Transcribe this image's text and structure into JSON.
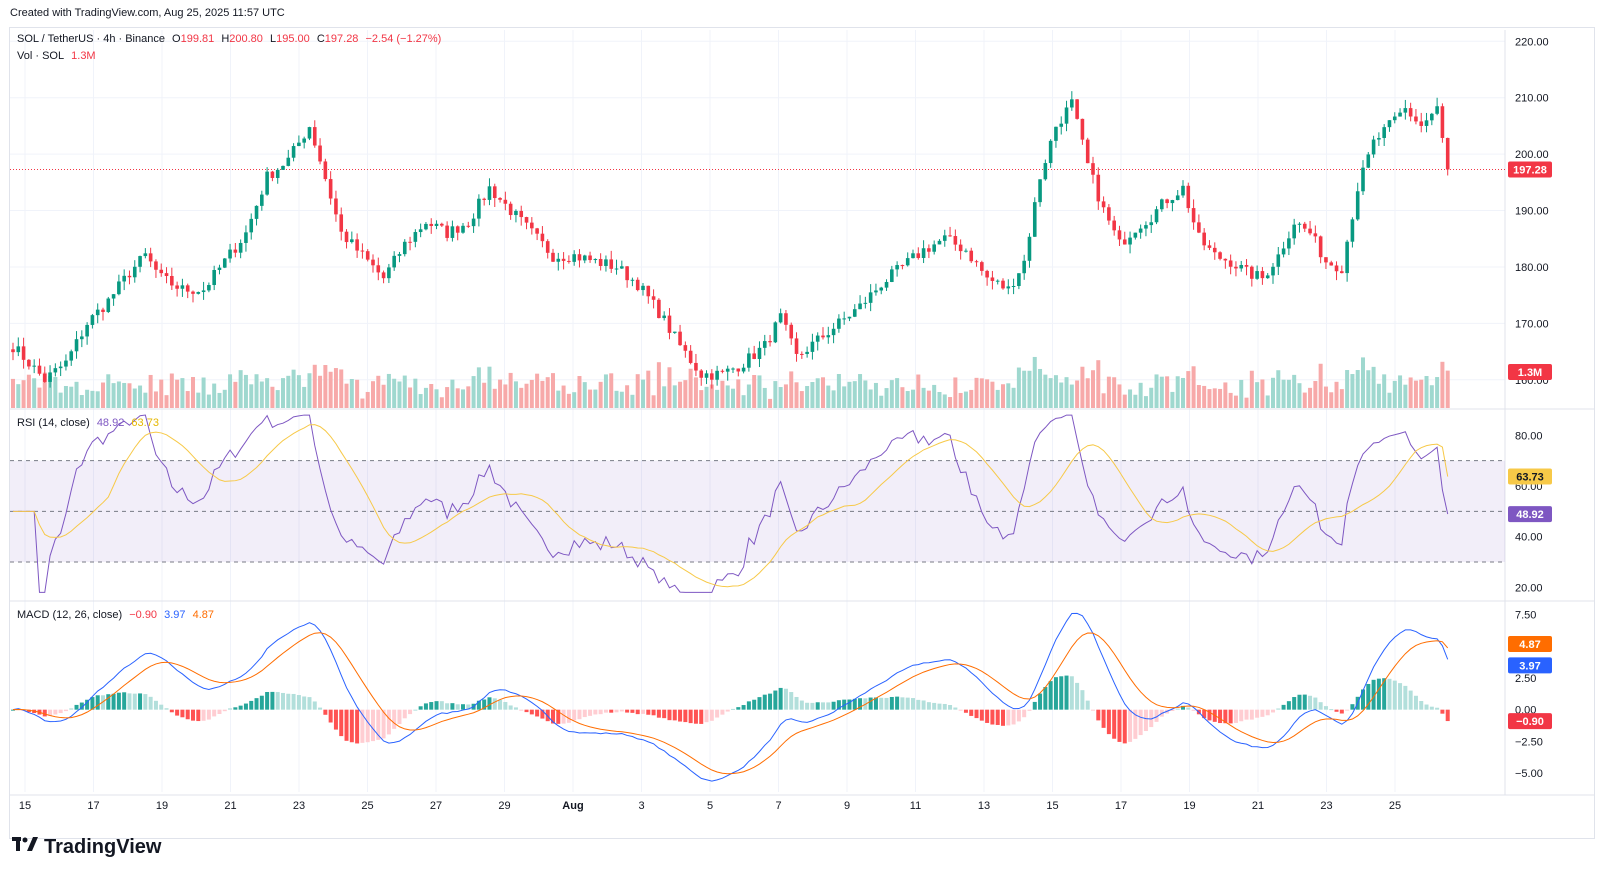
{
  "header": {
    "created_text": "Created with TradingView.com, Aug 25, 2025 11:57 UTC"
  },
  "symbol": {
    "name": "SOL / TetherUS · 4h · Binance",
    "open_label": "O",
    "open": "199.81",
    "high_label": "H",
    "high": "200.80",
    "low_label": "L",
    "low": "195.00",
    "close_label": "C",
    "close": "197.28",
    "change": "−2.54 (−1.27%)"
  },
  "volume_legend": {
    "label": "Vol · SOL",
    "value": "1.3M"
  },
  "price_axis": {
    "ticks": [
      "220.00",
      "210.00",
      "200.00",
      "190.00",
      "180.00",
      "170.00",
      "160.00"
    ],
    "last_price": "197.28",
    "volume_badge": "1.3M"
  },
  "rsi": {
    "label": "RSI (14, close)",
    "rsi_value": "48.92",
    "ma_value": "63.73",
    "ticks": [
      "80.00",
      "60.00",
      "40.00",
      "20.00"
    ],
    "badge_ma": "63.73",
    "badge_rsi": "48.92",
    "upper_band": 70,
    "lower_band": 30,
    "middle": 50
  },
  "macd": {
    "label": "MACD (12, 26, close)",
    "hist_value": "−0.90",
    "macd_value": "3.97",
    "signal_value": "4.87",
    "ticks": [
      "7.50",
      "5.00",
      "2.50",
      "0.00",
      "−2.50",
      "−5.00"
    ],
    "badge_signal": "4.87",
    "badge_macd": "3.97",
    "badge_hist": "−0.90"
  },
  "time_axis": {
    "labels": [
      "15",
      "17",
      "19",
      "21",
      "23",
      "25",
      "27",
      "29",
      "Aug",
      "3",
      "5",
      "7",
      "9",
      "11",
      "13",
      "15",
      "17",
      "19",
      "21",
      "23",
      "25"
    ]
  },
  "colors": {
    "up": "#089981",
    "down": "#f23645",
    "rsi": "#7e57c2",
    "rsi_ma": "#f7c948",
    "macd": "#2962ff",
    "signal": "#ff6d00"
  },
  "brand": {
    "name": "TradingView",
    "logo_icon": "tradingview-logo-icon"
  },
  "chart_data": {
    "type": "candlestick",
    "title": "SOL / TetherUS · 4h · Binance",
    "ylim": [
      155,
      222
    ],
    "price_path_keypoints": [
      [
        0,
        166
      ],
      [
        6,
        160
      ],
      [
        10,
        163
      ],
      [
        14,
        170
      ],
      [
        18,
        174
      ],
      [
        22,
        179
      ],
      [
        25,
        182
      ],
      [
        28,
        178
      ],
      [
        32,
        176
      ],
      [
        36,
        176
      ],
      [
        40,
        181
      ],
      [
        44,
        186
      ],
      [
        48,
        196
      ],
      [
        52,
        199
      ],
      [
        56,
        205
      ],
      [
        58,
        199
      ],
      [
        62,
        186
      ],
      [
        66,
        182
      ],
      [
        70,
        178
      ],
      [
        74,
        184
      ],
      [
        78,
        188
      ],
      [
        82,
        186
      ],
      [
        86,
        188
      ],
      [
        90,
        194
      ],
      [
        94,
        190
      ],
      [
        98,
        186
      ],
      [
        102,
        182
      ],
      [
        106,
        182
      ],
      [
        110,
        181
      ],
      [
        114,
        180
      ],
      [
        118,
        177
      ],
      [
        122,
        172
      ],
      [
        126,
        166
      ],
      [
        130,
        161
      ],
      [
        134,
        161
      ],
      [
        138,
        163
      ],
      [
        142,
        166
      ],
      [
        145,
        171
      ],
      [
        148,
        164
      ],
      [
        152,
        167
      ],
      [
        156,
        170
      ],
      [
        160,
        173
      ],
      [
        164,
        177
      ],
      [
        168,
        180
      ],
      [
        172,
        183
      ],
      [
        176,
        185
      ],
      [
        180,
        183
      ],
      [
        184,
        178
      ],
      [
        188,
        176
      ],
      [
        191,
        181
      ],
      [
        194,
        196
      ],
      [
        197,
        205
      ],
      [
        200,
        209
      ],
      [
        203,
        198
      ],
      [
        206,
        190
      ],
      [
        209,
        184
      ],
      [
        212,
        187
      ],
      [
        215,
        189
      ],
      [
        218,
        192
      ],
      [
        221,
        194
      ],
      [
        224,
        185
      ],
      [
        227,
        182
      ],
      [
        230,
        181
      ],
      [
        233,
        179
      ],
      [
        236,
        178
      ],
      [
        239,
        182
      ],
      [
        242,
        188
      ],
      [
        245,
        186
      ],
      [
        248,
        181
      ],
      [
        251,
        180
      ],
      [
        254,
        194
      ],
      [
        257,
        202
      ],
      [
        260,
        205
      ],
      [
        263,
        208
      ],
      [
        266,
        205
      ],
      [
        269,
        208
      ],
      [
        271,
        197
      ]
    ],
    "last_close": 197.28,
    "rsi_range": [
      15,
      90
    ],
    "macd_range": [
      -6.5,
      8.5
    ]
  }
}
